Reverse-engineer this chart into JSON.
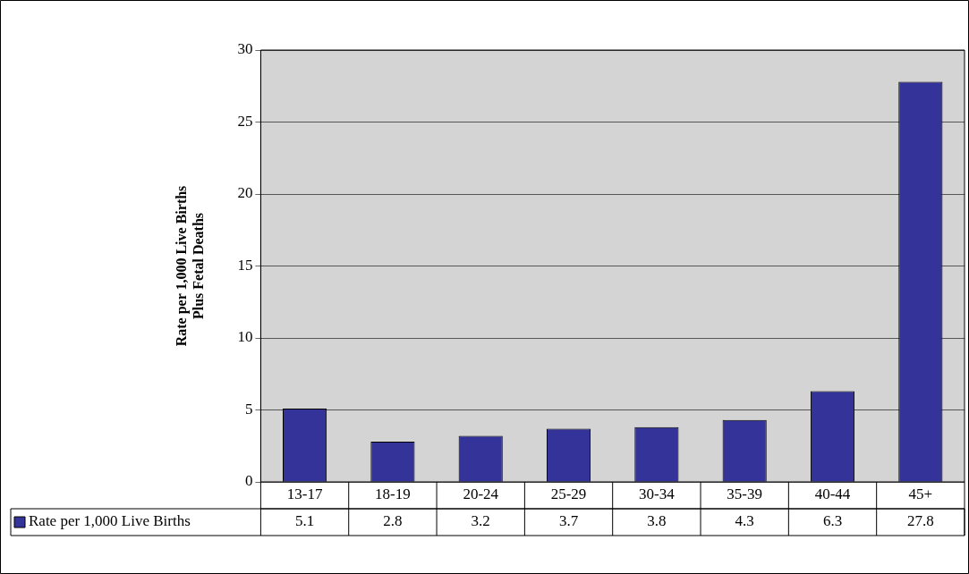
{
  "chart_data": {
    "type": "bar",
    "ylabel": "Rate per 1,000 Live Births\nPlus Fetal Deaths",
    "categories": [
      "13-17",
      "18-19",
      "20-24",
      "25-29",
      "30-34",
      "35-39",
      "40-44",
      "45+"
    ],
    "series": [
      {
        "name": "Rate per 1,000 Live Births",
        "color": "#333399",
        "values": [
          5.1,
          2.8,
          3.2,
          3.7,
          3.8,
          4.3,
          6.3,
          27.8
        ]
      }
    ],
    "ylim": [
      0,
      30
    ],
    "yticks": [
      0,
      5,
      10,
      15,
      20,
      25,
      30
    ],
    "grid": "y",
    "legend": "bottom",
    "data_labels": true
  }
}
